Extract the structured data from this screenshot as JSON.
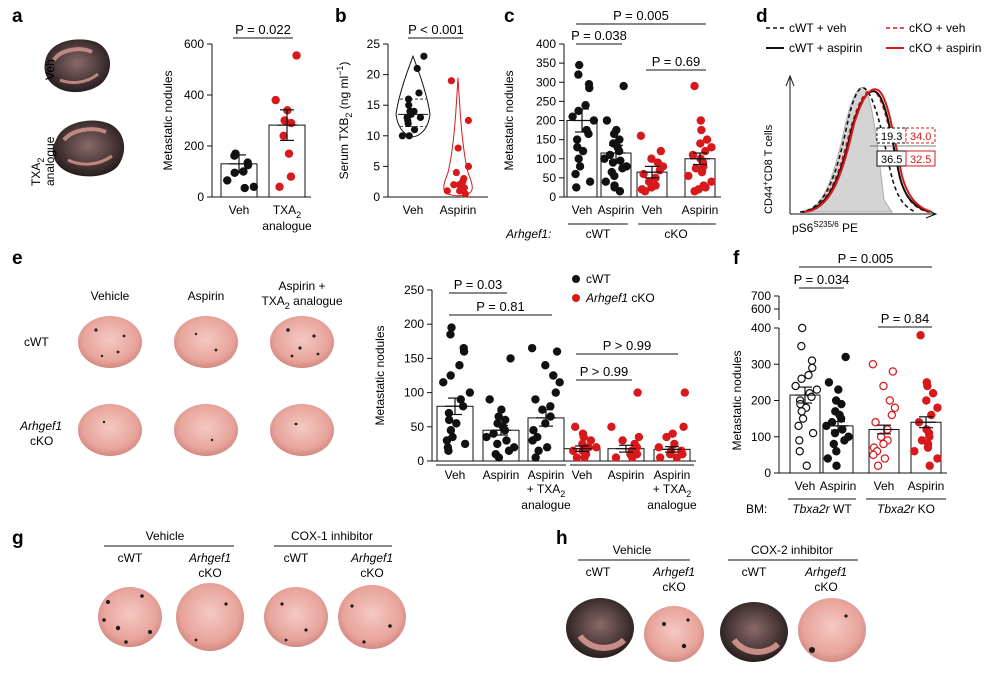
{
  "panels": {
    "a": {
      "letter": "a",
      "image_labels": [
        "Veh",
        "TXA",
        "2",
        "analogue"
      ],
      "chart_data": {
        "type": "bar",
        "title": "",
        "ylabel": "Metastatic nodules",
        "ylim": [
          0,
          600
        ],
        "yticks": [
          "0",
          "200",
          "400",
          "600"
        ],
        "categories": [
          "Veh",
          "TXA2 analogue"
        ],
        "xlabels": [
          [
            "Veh"
          ],
          [
            "TXA",
            "2",
            "analogue"
          ]
        ],
        "means": [
          130,
          282
        ],
        "sem": [
          35,
          60
        ],
        "points": [
          [
            170,
            162,
            135,
            125,
            100,
            95,
            65,
            40,
            35
          ],
          [
            555,
            380,
            340,
            300,
            290,
            240,
            170,
            80,
            40
          ]
        ],
        "colors": [
          "#111111",
          "#d7191c"
        ],
        "comparisons": [
          {
            "label": "P = 0.022"
          }
        ]
      }
    },
    "b": {
      "letter": "b",
      "chart_data": {
        "type": "violin",
        "ylabel": "Serum TXB2 (ng ml−1)",
        "ylabel_parts": [
          "Serum TXB",
          "2",
          " (ng ml",
          "−1",
          ")"
        ],
        "ylim": [
          0,
          25
        ],
        "yticks": [
          "0",
          "5",
          "10",
          "15",
          "20",
          "25"
        ],
        "categories": [
          "Veh",
          "Aspirin"
        ],
        "points": [
          [
            23,
            21,
            17,
            16,
            15,
            14,
            14,
            13.5,
            13,
            13,
            12.5,
            12,
            11,
            10,
            10
          ],
          [
            19,
            12.5,
            8,
            5,
            4,
            3,
            2.5,
            2,
            2,
            1.5,
            1,
            1,
            0.5
          ]
        ],
        "colors": [
          "#111111",
          "#d7191c"
        ],
        "comparisons": [
          {
            "label": "P < 0.001"
          }
        ]
      }
    },
    "c": {
      "letter": "c",
      "chart_data": {
        "type": "bar",
        "ylabel": "Metastatic nodules",
        "ylim": [
          0,
          400
        ],
        "yticks": [
          "0",
          "50",
          "100",
          "150",
          "200",
          "250",
          "300",
          "350",
          "400"
        ],
        "categories": [
          "Veh",
          "Aspirin",
          "Veh",
          "Aspirin"
        ],
        "groups": [
          "cWT",
          "cKO"
        ],
        "group_prefix": "Arhgef1:",
        "means": [
          200,
          115,
          65,
          100
        ],
        "sem": [
          30,
          20,
          15,
          15
        ],
        "points": [
          [
            345,
            320,
            295,
            285,
            240,
            225,
            210,
            200,
            175,
            165,
            150,
            130,
            120,
            100,
            80,
            60,
            40,
            25
          ],
          [
            290,
            200,
            175,
            165,
            150,
            140,
            130,
            120,
            110,
            100,
            95,
            90,
            80,
            75,
            65,
            55,
            40,
            30,
            25,
            15
          ],
          [
            160,
            120,
            100,
            90,
            80,
            70,
            60,
            50,
            40,
            30,
            25,
            20,
            15
          ],
          [
            290,
            200,
            175,
            150,
            140,
            130,
            120,
            110,
            100,
            90,
            80,
            75,
            70,
            65,
            55,
            40,
            30,
            25,
            20,
            15
          ]
        ],
        "colors": [
          "#111111",
          "#111111",
          "#d7191c",
          "#d7191c"
        ],
        "comparisons": [
          {
            "label": "P = 0.005"
          },
          {
            "label": "P = 0.038"
          },
          {
            "label": "P = 0.69"
          }
        ]
      }
    },
    "d": {
      "letter": "d",
      "chart_data": {
        "type": "histogram",
        "ylabel_parts": [
          "CD44",
          "+",
          "CD8 T cells"
        ],
        "xlabel_parts": [
          "pS6",
          "S235/6",
          " PE"
        ],
        "legend": [
          {
            "name": "cWT + veh",
            "color": "#111111",
            "dash": true
          },
          {
            "name": "cKO + veh",
            "color": "#d7191c",
            "dash": true
          },
          {
            "name": "cWT + aspirin",
            "color": "#111111",
            "dash": false
          },
          {
            "name": "cKO + aspirin",
            "color": "#d7191c",
            "dash": false
          }
        ],
        "values": [
          "19.3",
          "34.0",
          "36.5",
          "32.5"
        ]
      }
    },
    "e": {
      "letter": "e",
      "column_labels": [
        "Vehicle",
        "Aspirin",
        "Aspirin +",
        "TXA",
        "2",
        " analogue"
      ],
      "row_labels": [
        "cWT",
        "Arhgef1",
        "cKO"
      ],
      "chart_data": {
        "type": "bar",
        "ylabel": "Metastatic nodules",
        "ylim": [
          0,
          250
        ],
        "yticks": [
          "0",
          "50",
          "100",
          "150",
          "200",
          "250"
        ],
        "categories": [
          "Veh",
          "Aspirin",
          "Aspirin + TXA2 analogue",
          "Veh",
          "Aspirin",
          "Aspirin + TXA2 analogue"
        ],
        "xlabels": [
          [
            "Veh"
          ],
          [
            "Aspirin"
          ],
          [
            "Aspirin",
            "+ TXA",
            "2",
            "analogue"
          ],
          [
            "Veh"
          ],
          [
            "Aspirin"
          ],
          [
            "Aspirin",
            "+ TXA",
            "2",
            "analogue"
          ]
        ],
        "means": [
          80,
          45,
          63,
          18,
          18,
          17
        ],
        "sem": [
          12,
          7,
          12,
          4,
          5,
          4
        ],
        "points": [
          [
            195,
            185,
            165,
            160,
            140,
            125,
            115,
            100,
            90,
            80,
            70,
            60,
            55,
            45,
            35,
            30,
            25,
            20,
            15
          ],
          [
            150,
            90,
            75,
            65,
            60,
            55,
            50,
            45,
            40,
            35,
            30,
            25,
            20,
            15,
            10,
            5
          ],
          [
            165,
            160,
            140,
            125,
            115,
            100,
            90,
            80,
            75,
            65,
            55,
            45,
            35,
            30,
            20,
            15,
            5
          ],
          [
            50,
            40,
            35,
            30,
            25,
            20,
            20,
            15,
            15,
            10,
            10,
            5,
            5
          ],
          [
            100,
            50,
            35,
            30,
            25,
            20,
            15,
            15,
            10,
            10,
            5,
            5
          ],
          [
            100,
            50,
            40,
            35,
            25,
            20,
            15,
            15,
            10,
            10,
            5,
            5
          ]
        ],
        "colors": [
          "#111111",
          "#111111",
          "#111111",
          "#d7191c",
          "#d7191c",
          "#d7191c"
        ],
        "legend": [
          {
            "name": "cWT",
            "color": "#111111",
            "italic_part": ""
          },
          {
            "name": "Arhgef1",
            "suffix": " cKO",
            "color": "#d7191c"
          }
        ],
        "comparisons": [
          {
            "label": "P = 0.03"
          },
          {
            "label": "P = 0.81"
          },
          {
            "label": "P > 0.99"
          },
          {
            "label": "P > 0.99"
          }
        ]
      }
    },
    "f": {
      "letter": "f",
      "chart_data": {
        "type": "bar",
        "ylabel": "Metastatic nodules",
        "ylim": [
          0,
          400
        ],
        "break_ticks": [
          "600",
          "700"
        ],
        "yticks": [
          "0",
          "100",
          "200",
          "300",
          "400"
        ],
        "categories": [
          "Veh",
          "Aspirin",
          "Veh",
          "Aspirin"
        ],
        "groups": [
          "Tbxa2r WT",
          "Tbxa2r KO"
        ],
        "group_parts": [
          [
            "Tbxa2r",
            " WT"
          ],
          [
            "Tbxa2r",
            " KO"
          ]
        ],
        "group_prefix": "BM:",
        "means": [
          215,
          130,
          120,
          140
        ],
        "sem": [
          22,
          12,
          12,
          15
        ],
        "points": [
          [
            660,
            350,
            310,
            290,
            270,
            260,
            240,
            230,
            220,
            210,
            200,
            190,
            180,
            170,
            150,
            130,
            110,
            90,
            60,
            20
          ],
          [
            320,
            250,
            230,
            200,
            190,
            170,
            160,
            150,
            140,
            130,
            120,
            110,
            100,
            90,
            80,
            60,
            40,
            20
          ],
          [
            300,
            280,
            240,
            200,
            180,
            160,
            140,
            120,
            100,
            90,
            80,
            70,
            60,
            50,
            40,
            20
          ],
          [
            380,
            250,
            240,
            220,
            200,
            180,
            160,
            140,
            120,
            110,
            100,
            90,
            80,
            70,
            60,
            40,
            20
          ]
        ],
        "colors": [
          "#111111",
          "#111111",
          "#d7191c",
          "#d7191c"
        ],
        "filled": [
          false,
          true,
          false,
          true
        ],
        "comparisons": [
          {
            "label": "P = 0.005"
          },
          {
            "label": "P = 0.034"
          },
          {
            "label": "P = 0.84"
          }
        ]
      }
    },
    "g": {
      "letter": "g",
      "headers": [
        "Vehicle",
        "COX-1 inhibitor"
      ],
      "columns": [
        [
          "cWT"
        ],
        [
          "Arhgef1",
          "cKO"
        ],
        [
          "cWT"
        ],
        [
          "Arhgef1",
          "cKO"
        ]
      ]
    },
    "h": {
      "letter": "h",
      "headers": [
        "Vehicle",
        "COX-2 inhibitor"
      ],
      "columns": [
        [
          "cWT"
        ],
        [
          "Arhgef1",
          "cKO"
        ],
        [
          "cWT"
        ],
        [
          "Arhgef1",
          "cKO"
        ]
      ]
    }
  }
}
